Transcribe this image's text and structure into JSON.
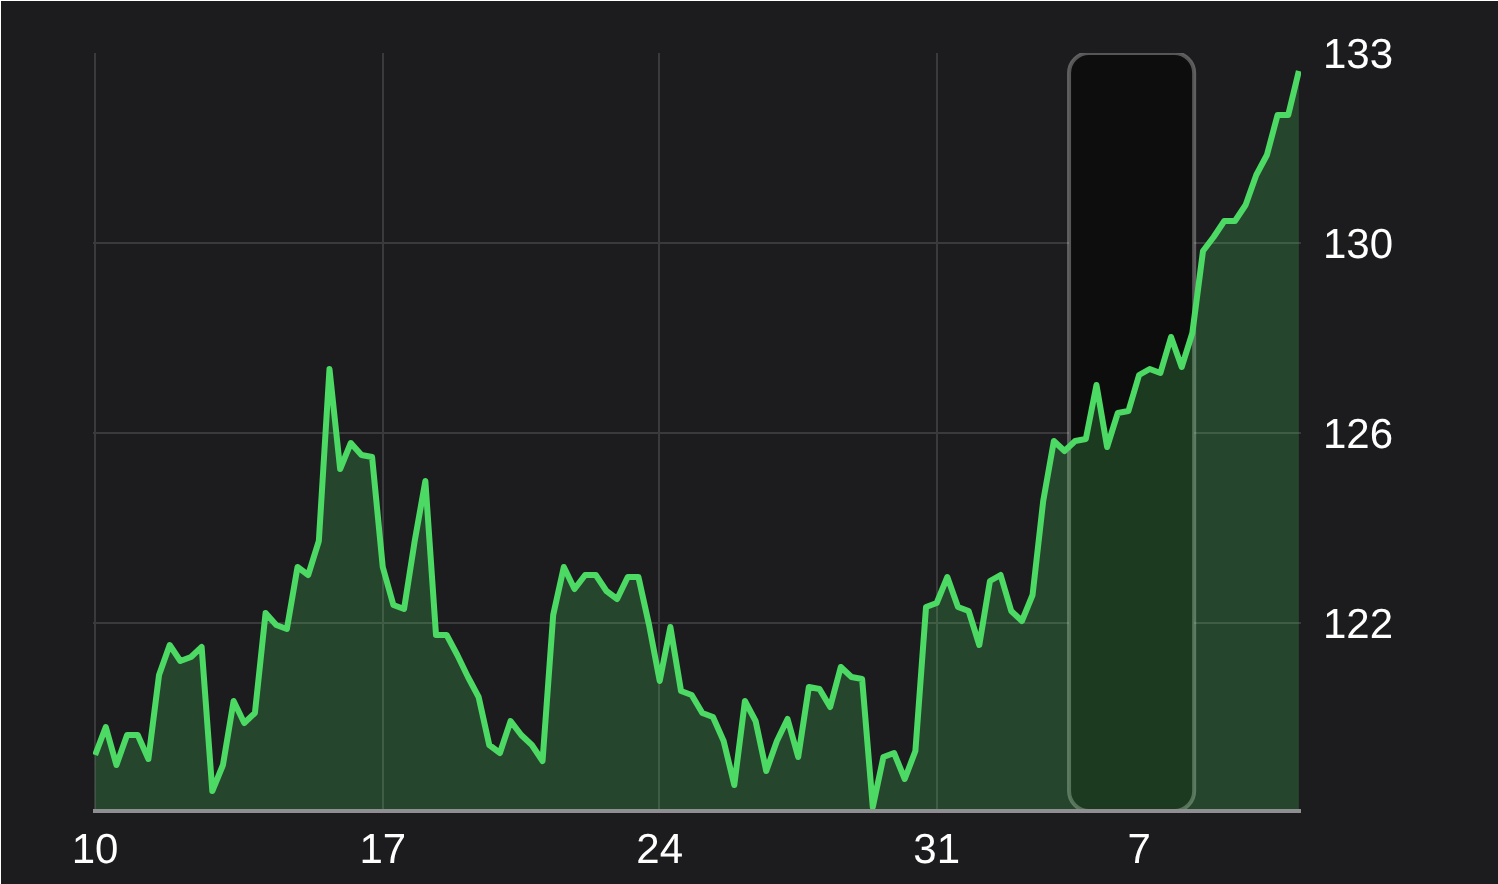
{
  "chart_data": {
    "type": "area",
    "categories": [
      "10",
      null,
      null,
      null,
      null,
      null,
      null,
      null,
      null,
      null,
      null,
      null,
      null,
      null,
      null,
      null,
      null,
      null,
      null,
      null,
      null,
      null,
      null,
      null,
      null,
      null,
      null,
      "17",
      null,
      null,
      null,
      null,
      null,
      null,
      null,
      null,
      null,
      null,
      null,
      null,
      null,
      null,
      null,
      null,
      null,
      null,
      null,
      null,
      null,
      null,
      null,
      null,
      null,
      "24",
      null,
      null,
      null,
      null,
      null,
      null,
      null,
      null,
      null,
      null,
      null,
      null,
      null,
      null,
      null,
      null,
      null,
      null,
      null,
      null,
      null,
      null,
      null,
      null,
      null,
      "31",
      null,
      null,
      null,
      null,
      null,
      null,
      null,
      null,
      null,
      null,
      null,
      null,
      null,
      null,
      null,
      null,
      null,
      null,
      "7",
      null,
      null,
      null,
      null,
      null,
      null,
      null,
      null,
      null,
      null,
      null,
      null,
      null,
      null,
      null
    ],
    "series": [
      {
        "color": "#4cd964",
        "values": [
          119.36,
          119.92,
          119.16,
          119.76,
          119.76,
          119.28,
          120.96,
          121.56,
          121.24,
          121.32,
          121.52,
          118.64,
          119.16,
          120.44,
          120.0,
          120.2,
          122.2,
          121.96,
          121.88,
          123.12,
          122.96,
          123.64,
          127.08,
          125.08,
          125.6,
          125.36,
          125.32,
          123.12,
          122.36,
          122.28,
          123.64,
          124.84,
          121.76,
          121.76,
          121.36,
          120.92,
          120.52,
          119.56,
          119.4,
          120.04,
          119.76,
          119.56,
          119.24,
          122.16,
          123.12,
          122.68,
          122.96,
          122.96,
          122.64,
          122.48,
          122.92,
          122.92,
          121.96,
          120.84,
          121.92,
          120.64,
          120.56,
          120.2,
          120.12,
          119.64,
          118.76,
          120.44,
          120.04,
          119.04,
          119.64,
          120.08,
          119.32,
          120.72,
          120.68,
          120.32,
          121.12,
          120.92,
          120.88,
          118.32,
          119.32,
          119.4,
          118.88,
          119.44,
          122.32,
          122.4,
          122.92,
          122.32,
          122.24,
          121.56,
          122.84,
          122.96,
          122.24,
          122.04,
          122.56,
          124.44,
          125.64,
          125.44,
          125.64,
          125.68,
          126.76,
          125.52,
          126.2,
          126.24,
          126.96,
          127.08,
          127.0,
          127.72,
          127.12,
          127.8,
          129.44,
          129.72,
          130.04,
          130.04,
          130.36,
          130.96,
          131.36,
          132.16,
          132.16,
          133.04
        ]
      }
    ],
    "ylim": [
      118.24,
      133.4
    ],
    "yticks": [
      {
        "value": 133.4,
        "label": "133"
      },
      {
        "value": 129.6,
        "label": "130"
      },
      {
        "value": 125.8,
        "label": "126"
      },
      {
        "value": 122.0,
        "label": "122"
      }
    ],
    "grid": true,
    "marker": "none",
    "line_style": "solid"
  }
}
